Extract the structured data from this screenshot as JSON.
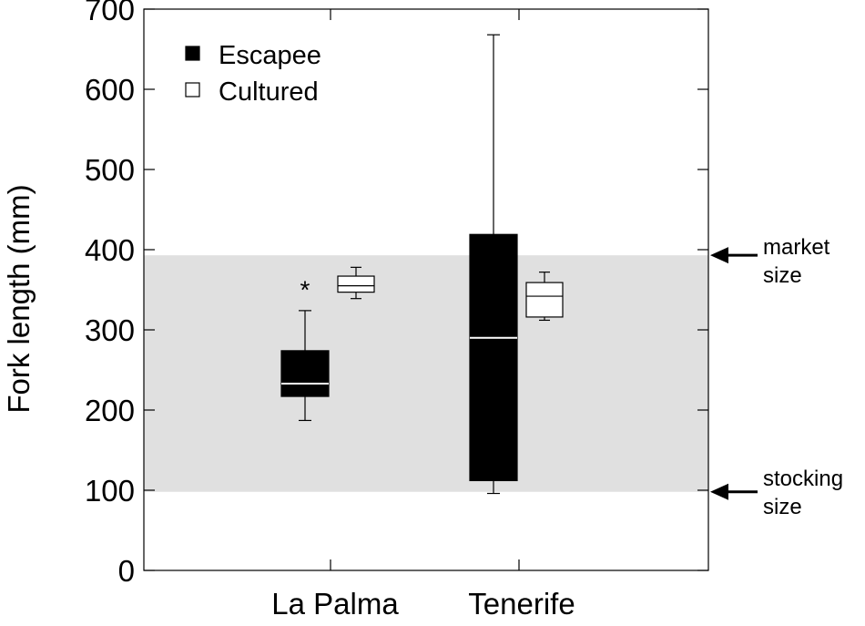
{
  "chart_data": {
    "type": "box",
    "ylabel": "Fork length (mm)",
    "ylim": [
      0,
      700
    ],
    "yticks": [
      0,
      100,
      200,
      300,
      400,
      500,
      600,
      700
    ],
    "categories": [
      "La Palma",
      "Tenerife"
    ],
    "legend": {
      "position": "top-left",
      "entries": [
        {
          "label": "Escapee",
          "fill": "#000000"
        },
        {
          "label": "Cultured",
          "fill": "#ffffff"
        }
      ]
    },
    "shaded_band": {
      "from": 98,
      "to": 393,
      "color": "#e0e0e0"
    },
    "series": [
      {
        "name": "Escapee",
        "color": "#000000",
        "boxes": [
          {
            "category": "La Palma",
            "min": 187,
            "q1": 217,
            "median": 233,
            "q3": 274,
            "max": 324
          },
          {
            "category": "Tenerife",
            "min": 96,
            "q1": 112,
            "median": 290,
            "q3": 419,
            "max": 668
          }
        ]
      },
      {
        "name": "Cultured",
        "color": "#ffffff",
        "boxes": [
          {
            "category": "La Palma",
            "min": 339,
            "q1": 347,
            "median": 355,
            "q3": 367,
            "max": 378
          },
          {
            "category": "Tenerife",
            "min": 312,
            "q1": 316,
            "median": 342,
            "q3": 359,
            "max": 372
          }
        ]
      }
    ],
    "outliers": [
      {
        "series": "Escapee",
        "category": "La Palma",
        "y": 355,
        "symbol": "*"
      }
    ],
    "annotations": [
      {
        "lines": [
          "market",
          "size"
        ],
        "y": 393
      },
      {
        "lines": [
          "stocking",
          "size"
        ],
        "y": 98
      }
    ],
    "grid": false
  }
}
